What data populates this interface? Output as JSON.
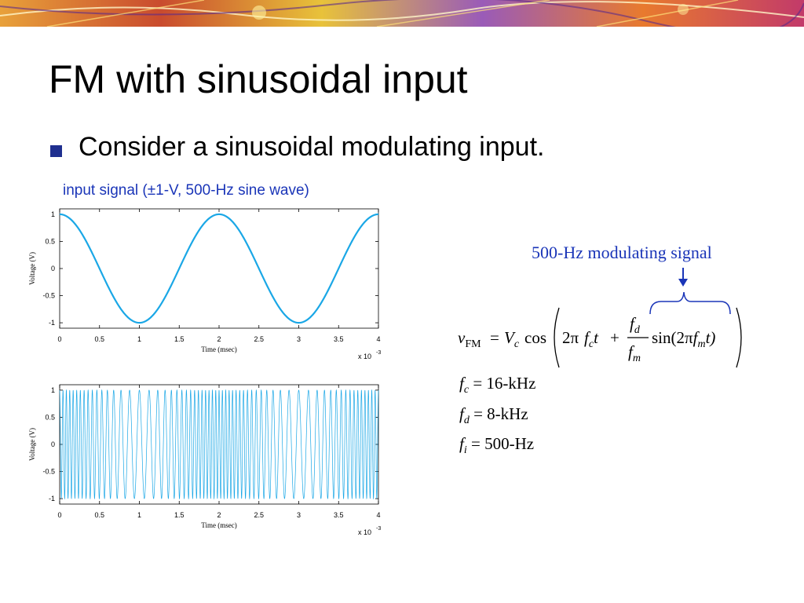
{
  "slide": {
    "title": "FM with sinusoidal input",
    "bullet": "Consider a sinusoidal modulating input.",
    "caption": "input signal (±1-V, 500-Hz sine wave)",
    "modulating_label": "500-Hz modulating signal"
  },
  "equation": {
    "v": "v",
    "v_sub": "FM",
    "eq": "=",
    "V": "V",
    "V_sub": "c",
    "cos": "cos",
    "two_pi": "2π",
    "f": "f",
    "fc_sub": "c",
    "t": "t",
    "plus": "+",
    "num_f": "f",
    "num_sub": "d",
    "den_f": "f",
    "den_sub": "m",
    "sin_open": "sin(2π",
    "fm_f": "f",
    "fm_sub": "m",
    "t_close": "t)"
  },
  "params": [
    {
      "sym": "f",
      "sub": "c",
      "value": "= 16-kHz"
    },
    {
      "sym": "f",
      "sub": "d",
      "value": "= 8-kHz"
    },
    {
      "sym": "f",
      "sub": "i",
      "value": "= 500-Hz"
    }
  ],
  "colors": {
    "accent_blue": "#1a35b8",
    "plot_line": "#1aa7e6",
    "bullet": "#1f2f8f"
  },
  "chart_data": [
    {
      "type": "line",
      "title": "",
      "xlabel": "Time (msec)",
      "ylabel": "Voltage (V)",
      "x_multiplier_label": "x 10",
      "x_multiplier_exp": "-3",
      "xlim": [
        0,
        0.004
      ],
      "ylim": [
        -1.1,
        1.1
      ],
      "xticks": [
        0,
        0.0005,
        0.001,
        0.0015,
        0.002,
        0.0025,
        0.003,
        0.0035,
        0.004
      ],
      "xtick_labels": [
        "0",
        "0.5",
        "1",
        "1.5",
        "2",
        "2.5",
        "3",
        "3.5",
        "4"
      ],
      "yticks": [
        1,
        0.5,
        0,
        -0.5,
        -1
      ],
      "ytick_labels": [
        "1",
        "0.5",
        "0",
        "-0.5",
        "-1"
      ],
      "series": [
        {
          "function": "cos(2π·500·t)",
          "amplitude": 1,
          "frequency_hz": 500
        }
      ]
    },
    {
      "type": "line",
      "title": "",
      "xlabel": "Time (msec)",
      "ylabel": "Voltage (V)",
      "x_multiplier_label": "x 10",
      "x_multiplier_exp": "-3",
      "xlim": [
        0,
        0.004
      ],
      "ylim": [
        -1.1,
        1.1
      ],
      "xticks": [
        0,
        0.0005,
        0.001,
        0.0015,
        0.002,
        0.0025,
        0.003,
        0.0035,
        0.004
      ],
      "xtick_labels": [
        "0",
        "0.5",
        "1",
        "1.5",
        "2",
        "2.5",
        "3",
        "3.5",
        "4"
      ],
      "yticks": [
        1,
        0.5,
        0,
        -0.5,
        -1
      ],
      "ytick_labels": [
        "1",
        "0.5",
        "0",
        "-0.5",
        "-1"
      ],
      "series": [
        {
          "function": "cos(2π·16000·t + (8000/500)·sin(2π·500·t))",
          "amplitude": 1,
          "fc_hz": 16000,
          "fd_hz": 8000,
          "fm_hz": 500
        }
      ]
    }
  ]
}
